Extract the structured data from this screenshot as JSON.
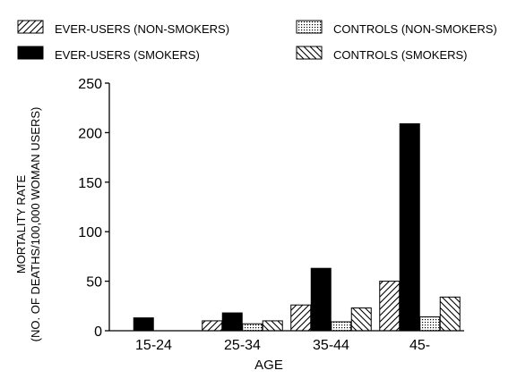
{
  "chart_data": {
    "type": "bar",
    "title": "",
    "xlabel": "AGE",
    "ylabel": [
      "MORTALITY RATE",
      "(NO. OF DEATHS/100,000 WOMAN USERS)"
    ],
    "categories": [
      "15-24",
      "25-34",
      "35-44",
      "45-"
    ],
    "ylim": [
      0,
      250
    ],
    "yticks": [
      0,
      50,
      100,
      150,
      200,
      250
    ],
    "grid": false,
    "legend_position": "top",
    "series": [
      {
        "name": "EVER-USERS (NON-SMOKERS)",
        "pattern": "diagonal-up",
        "values": [
          0,
          10,
          26,
          50
        ]
      },
      {
        "name": "EVER-USERS (SMOKERS)",
        "pattern": "solid",
        "values": [
          13,
          18,
          63,
          209
        ]
      },
      {
        "name": "CONTROLS (NON-SMOKERS)",
        "pattern": "dots",
        "values": [
          0,
          7,
          9,
          14
        ]
      },
      {
        "name": "CONTROLS (SMOKERS)",
        "pattern": "diagonal-down",
        "values": [
          0,
          10,
          23,
          34
        ]
      }
    ],
    "colors": {
      "ink": "#000000",
      "background": "#ffffff"
    }
  }
}
